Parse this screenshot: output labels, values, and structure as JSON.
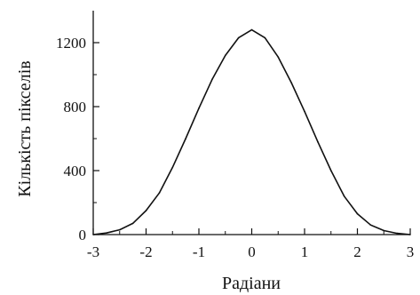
{
  "chart_data": {
    "type": "line",
    "title": "",
    "xlabel": "Радіани",
    "ylabel": "Кількість пікселів",
    "xlim": [
      -3,
      3
    ],
    "ylim": [
      0,
      1400
    ],
    "xticks": [
      "-3",
      "-2",
      "-1",
      "0",
      "1",
      "2",
      "3"
    ],
    "yticks": [
      "0",
      "400",
      "800",
      "1200"
    ],
    "grid": false,
    "series": [
      {
        "x": [
          -3.0,
          -2.75,
          -2.5,
          -2.25,
          -2.0,
          -1.75,
          -1.5,
          -1.25,
          -1.0,
          -0.75,
          -0.5,
          -0.25,
          0.0,
          0.25,
          0.5,
          0.75,
          1.0,
          1.25,
          1.5,
          1.75,
          2.0,
          2.25,
          2.5,
          2.75,
          3.0
        ],
        "values": [
          0,
          10,
          30,
          70,
          150,
          260,
          420,
          600,
          790,
          970,
          1120,
          1230,
          1280,
          1230,
          1110,
          950,
          770,
          580,
          400,
          240,
          130,
          60,
          25,
          8,
          0
        ]
      }
    ]
  }
}
